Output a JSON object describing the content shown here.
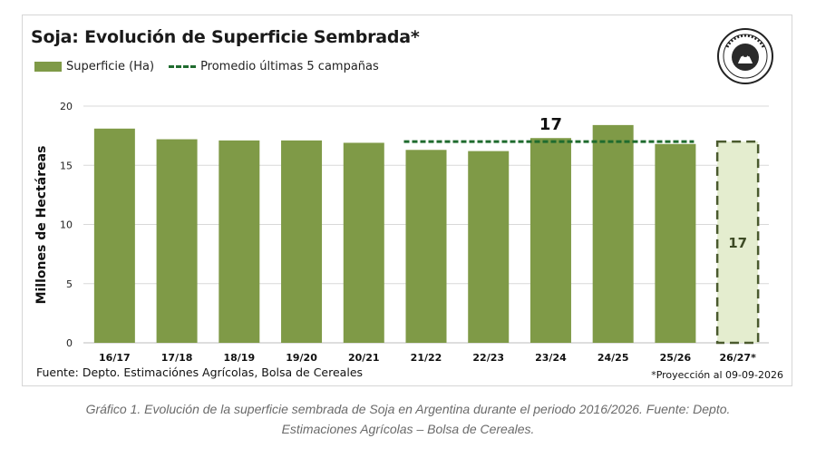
{
  "title": "Soja: Evolución de Superficie Sembrada*",
  "legend": {
    "bar": "Superficie (Ha)",
    "line": "Promedio últimas 5 campañas"
  },
  "ylabel": "Millones de Hectáreas",
  "source": "Fuente: Depto. Estimaciónes Agrícolas, Bolsa de Cereales",
  "projection_note": "*Proyección al 09-09-2026",
  "caption": {
    "line1": "Gráfico 1. Evolución de la superficie sembrada de Soja en Argentina durante el periodo 2016/2026. Fuente: Depto.",
    "line2": "Estimaciones Agrícolas – Bolsa de Cereales."
  },
  "logo_text": "Bolsa de Cereales",
  "colors": {
    "bar": "#7f9a47",
    "projection_fill": "#e4edcf",
    "projection_border": "#4a5a2e",
    "average_line": "#1f6b2e"
  },
  "chart_data": {
    "type": "bar",
    "categories": [
      "16/17",
      "17/18",
      "18/19",
      "19/20",
      "20/21",
      "21/22",
      "22/23",
      "23/24",
      "24/25",
      "25/26",
      "26/27*"
    ],
    "values": [
      18.1,
      17.2,
      17.1,
      17.1,
      16.9,
      16.3,
      16.2,
      17.3,
      18.4,
      16.8,
      17.0
    ],
    "projected": [
      false,
      false,
      false,
      false,
      false,
      false,
      false,
      false,
      false,
      false,
      true
    ],
    "average": {
      "value": 17.0,
      "from": "21/22",
      "to": "25/26",
      "label": "17"
    },
    "projection_label": "17",
    "yticks": [
      0,
      5,
      10,
      15,
      20
    ],
    "ylim": [
      0,
      20
    ],
    "grid": true
  }
}
